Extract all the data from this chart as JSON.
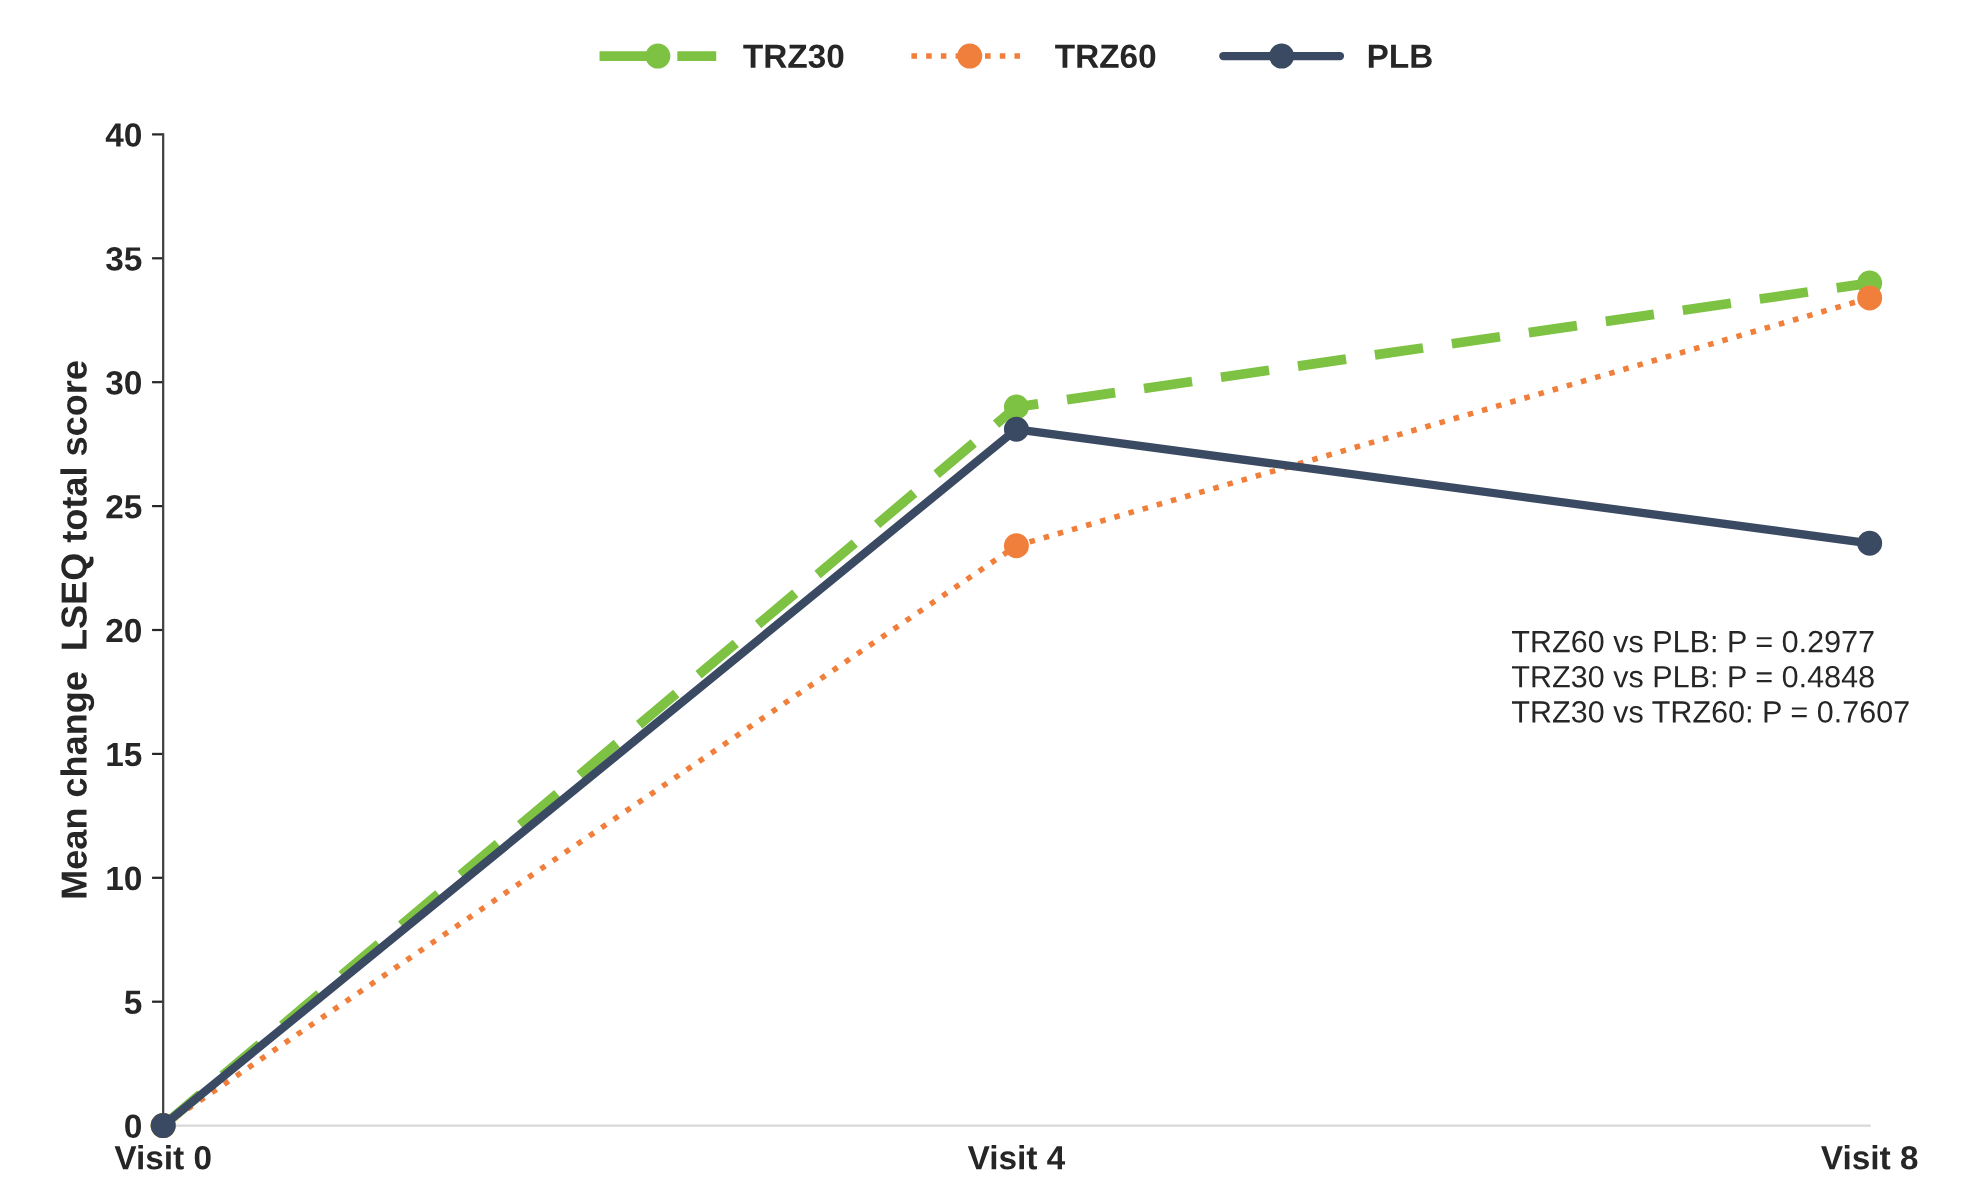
{
  "chart_data": {
    "type": "line",
    "ylabel": "Mean change  LSEQ total score",
    "categories": [
      "Visit 0",
      "Visit 4",
      "Visit 8"
    ],
    "series": [
      {
        "name": "TRZ30",
        "color": "#7dc242",
        "line_style": "dashed",
        "values": [
          0,
          29.0,
          34.0
        ]
      },
      {
        "name": "TRZ60",
        "color": "#f07f3c",
        "line_style": "dotted",
        "values": [
          0,
          23.4,
          33.4
        ]
      },
      {
        "name": "PLB",
        "color": "#3b4a63",
        "line_style": "solid",
        "values": [
          0,
          28.1,
          23.5
        ]
      }
    ],
    "ylim": [
      0,
      40
    ],
    "yticks": [
      0,
      5,
      10,
      15,
      20,
      25,
      30,
      35,
      40
    ],
    "marker": "circle",
    "grid": false,
    "legend": "top",
    "annotations": [
      "TRZ60 vs PLB: P = 0.2977\nTRZ30 vs PLB: P = 0.4848\nTRZ30 vs TRZ60: P = 0.7607"
    ]
  }
}
